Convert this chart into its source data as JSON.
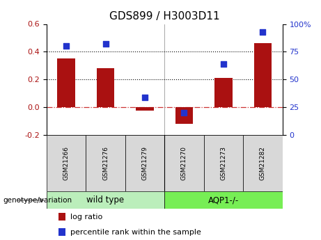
{
  "title": "GDS899 / H3003D11",
  "samples": [
    "GSM21266",
    "GSM21276",
    "GSM21279",
    "GSM21270",
    "GSM21273",
    "GSM21282"
  ],
  "log_ratio": [
    0.35,
    0.28,
    -0.025,
    -0.12,
    0.21,
    0.46
  ],
  "percentile_rank": [
    80,
    82,
    34,
    20,
    64,
    93
  ],
  "bar_color": "#aa1111",
  "dot_color": "#2233cc",
  "left_ylim": [
    -0.2,
    0.6
  ],
  "right_ylim": [
    0,
    100
  ],
  "left_yticks": [
    -0.2,
    0.0,
    0.2,
    0.4,
    0.6
  ],
  "right_yticks": [
    0,
    25,
    50,
    75,
    100
  ],
  "group1_label": "wild type",
  "group2_label": "AQP1-/-",
  "group1_color": "#bbeebb",
  "group2_color": "#77ee55",
  "group1_count": 3,
  "group2_count": 3,
  "genotype_label": "genotype/variation",
  "legend_bar_label": "log ratio",
  "legend_dot_label": "percentile rank within the sample",
  "bar_width": 0.45,
  "title_fontsize": 11,
  "sample_box_color": "#d8d8d8"
}
